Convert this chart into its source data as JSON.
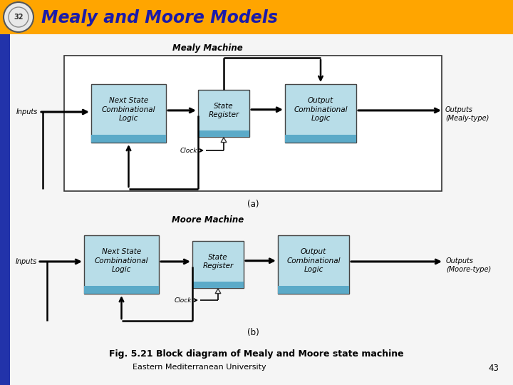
{
  "title": "Mealy and Moore Models",
  "title_color": "#1a1aaa",
  "header_bg": "#FFA500",
  "fig_caption": "Fig. 5.21 Block diagram of Mealy and Moore state machine",
  "footer_text": "Eastern Mediterranean University",
  "footer_number": "43",
  "mealy_label": "Mealy Machine",
  "moore_label": "Moore Machine",
  "label_a": "(a)",
  "label_b": "(b)",
  "box_fill": "#b8dde8",
  "box_fill_dark": "#5baac8",
  "bg_color": "#f5f5f5",
  "inputs_label": "Inputs",
  "outputs_mealy": "Outputs\n(Mealy-type)",
  "outputs_moore": "Outputs\n(Moore-type)",
  "nsc_label": "Next State\nCombinational\nLogic",
  "sr_label": "State\nRegister",
  "ocl_label": "Output\nCombinational\nLogic",
  "clock_label": "Clock",
  "left_bar_color": "#2233aa"
}
